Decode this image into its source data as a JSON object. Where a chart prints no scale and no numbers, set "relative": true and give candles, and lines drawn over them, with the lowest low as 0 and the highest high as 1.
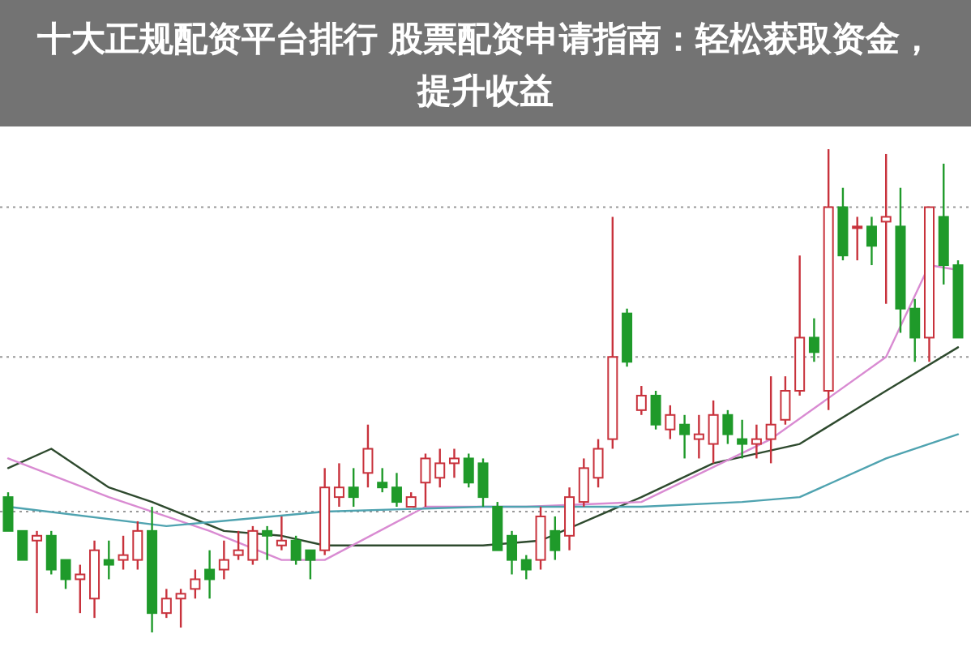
{
  "chart_data": {
    "type": "candlestick",
    "title": "十大正规配资平台排行 股票配资申请指南：轻松获取资金，提升收益",
    "relative": true,
    "grid": "y",
    "categories": [
      null,
      null,
      null,
      null,
      null,
      null,
      null,
      null,
      null,
      null,
      null,
      null,
      null,
      null,
      null,
      null,
      null,
      null,
      null,
      null,
      null,
      null,
      null,
      null,
      null,
      null,
      null,
      null,
      null,
      null,
      null,
      null,
      null,
      null,
      null,
      null,
      null,
      null,
      null,
      null,
      null,
      null,
      null,
      null,
      null,
      null,
      null,
      null,
      null,
      null,
      null,
      null,
      null,
      null,
      null,
      null,
      null,
      null,
      null,
      null,
      null,
      null,
      null,
      null,
      null,
      null,
      null
    ],
    "colors": [
      "#1f9a2a",
      "#1f9a2a",
      "#c8323c",
      "#1f9a2a",
      "#1f9a2a",
      "#c8323c",
      "#c8323c",
      "#1f9a2a",
      "#c8323c",
      "#c8323c",
      "#1f9a2a",
      "#c8323c",
      "#c8323c",
      "#c8323c",
      "#1f9a2a",
      "#c8323c",
      "#c8323c",
      "#c8323c",
      "#1f9a2a",
      "#c8323c",
      "#1f9a2a",
      "#1f9a2a",
      "#c8323c",
      "#c8323c",
      "#1f9a2a",
      "#c8323c",
      "#1f9a2a",
      "#1f9a2a",
      "#c8323c",
      "#c8323c",
      "#c8323c",
      "#c8323c",
      "#1f9a2a",
      "#1f9a2a",
      "#1f9a2a",
      "#1f9a2a",
      "#1f9a2a",
      "#c8323c",
      "#1f9a2a",
      "#c8323c",
      "#c8323c",
      "#c8323c",
      "#c8323c",
      "#1f9a2a",
      "#c8323c",
      "#1f9a2a",
      "#c8323c",
      "#1f9a2a",
      "#c8323c",
      "#c8323c",
      "#1f9a2a",
      "#1f9a2a",
      "#c8323c",
      "#c8323c",
      "#c8323c",
      "#c8323c",
      "#1f9a2a",
      "#c8323c",
      "#1f9a2a",
      "#c8323c",
      "#1f9a2a",
      "#c8323c",
      "#1f9a2a",
      "#1f9a2a",
      "#c8323c",
      "#1f9a2a",
      "#1f9a2a"
    ],
    "ohlc": [
      [
        0.28,
        0.29,
        0.21,
        0.21
      ],
      [
        0.21,
        0.21,
        0.15,
        0.15
      ],
      [
        0.19,
        0.21,
        0.04,
        0.2
      ],
      [
        0.2,
        0.21,
        0.12,
        0.13
      ],
      [
        0.15,
        0.15,
        0.09,
        0.11
      ],
      [
        0.11,
        0.14,
        0.04,
        0.12
      ],
      [
        0.07,
        0.19,
        0.03,
        0.17
      ],
      [
        0.15,
        0.19,
        0.11,
        0.14
      ],
      [
        0.15,
        0.2,
        0.13,
        0.16
      ],
      [
        0.15,
        0.23,
        0.13,
        0.21
      ],
      [
        0.21,
        0.26,
        0.0,
        0.04
      ],
      [
        0.04,
        0.09,
        0.03,
        0.07
      ],
      [
        0.07,
        0.09,
        0.01,
        0.08
      ],
      [
        0.09,
        0.13,
        0.07,
        0.11
      ],
      [
        0.13,
        0.17,
        0.07,
        0.11
      ],
      [
        0.13,
        0.19,
        0.11,
        0.15
      ],
      [
        0.16,
        0.21,
        0.15,
        0.17
      ],
      [
        0.15,
        0.22,
        0.14,
        0.21
      ],
      [
        0.21,
        0.22,
        0.15,
        0.2
      ],
      [
        0.18,
        0.24,
        0.17,
        0.19
      ],
      [
        0.19,
        0.2,
        0.14,
        0.15
      ],
      [
        0.17,
        0.17,
        0.11,
        0.15
      ],
      [
        0.17,
        0.34,
        0.16,
        0.3
      ],
      [
        0.28,
        0.35,
        0.26,
        0.3
      ],
      [
        0.3,
        0.34,
        0.26,
        0.28
      ],
      [
        0.33,
        0.43,
        0.3,
        0.38
      ],
      [
        0.31,
        0.34,
        0.29,
        0.3
      ],
      [
        0.3,
        0.33,
        0.26,
        0.27
      ],
      [
        0.26,
        0.29,
        0.26,
        0.28
      ],
      [
        0.31,
        0.37,
        0.26,
        0.36
      ],
      [
        0.32,
        0.38,
        0.3,
        0.35
      ],
      [
        0.35,
        0.38,
        0.32,
        0.36
      ],
      [
        0.36,
        0.37,
        0.3,
        0.31
      ],
      [
        0.35,
        0.36,
        0.26,
        0.28
      ],
      [
        0.26,
        0.27,
        0.17,
        0.17
      ],
      [
        0.2,
        0.21,
        0.12,
        0.15
      ],
      [
        0.15,
        0.16,
        0.11,
        0.13
      ],
      [
        0.15,
        0.26,
        0.13,
        0.24
      ],
      [
        0.21,
        0.24,
        0.15,
        0.17
      ],
      [
        0.2,
        0.3,
        0.17,
        0.28
      ],
      [
        0.27,
        0.36,
        0.26,
        0.34
      ],
      [
        0.32,
        0.4,
        0.3,
        0.38
      ],
      [
        0.4,
        0.86,
        0.38,
        0.57
      ],
      [
        0.66,
        0.67,
        0.55,
        0.56
      ],
      [
        0.46,
        0.51,
        0.45,
        0.49
      ],
      [
        0.49,
        0.5,
        0.42,
        0.43
      ],
      [
        0.42,
        0.47,
        0.4,
        0.45
      ],
      [
        0.43,
        0.45,
        0.36,
        0.41
      ],
      [
        0.4,
        0.45,
        0.36,
        0.41
      ],
      [
        0.39,
        0.48,
        0.35,
        0.45
      ],
      [
        0.45,
        0.46,
        0.39,
        0.41
      ],
      [
        0.4,
        0.44,
        0.36,
        0.39
      ],
      [
        0.39,
        0.43,
        0.36,
        0.4
      ],
      [
        0.4,
        0.53,
        0.35,
        0.43
      ],
      [
        0.44,
        0.53,
        0.43,
        0.5
      ],
      [
        0.5,
        0.78,
        0.49,
        0.61
      ],
      [
        0.61,
        0.65,
        0.56,
        0.58
      ],
      [
        0.5,
        1.0,
        0.46,
        0.88
      ],
      [
        0.88,
        0.92,
        0.77,
        0.78
      ],
      [
        0.84,
        0.86,
        0.77,
        0.84
      ],
      [
        0.84,
        0.86,
        0.76,
        0.8
      ],
      [
        0.85,
        0.99,
        0.68,
        0.86
      ],
      [
        0.84,
        0.92,
        0.62,
        0.67
      ],
      [
        0.67,
        0.69,
        0.56,
        0.61
      ],
      [
        0.61,
        0.88,
        0.56,
        0.88
      ],
      [
        0.86,
        0.97,
        0.72,
        0.76
      ],
      [
        0.76,
        0.77,
        0.61,
        0.61
      ]
    ],
    "series": [
      {
        "type": "line",
        "color": "#2e4a2e",
        "values": [
          0.34,
          null,
          null,
          0.38,
          null,
          null,
          null,
          0.3,
          null,
          null,
          0.27,
          null,
          null,
          null,
          null,
          0.21,
          null,
          null,
          null,
          0.2,
          null,
          null,
          0.18,
          null,
          null,
          null,
          null,
          null,
          null,
          null,
          null,
          null,
          null,
          0.18,
          null,
          null,
          null,
          0.19,
          null,
          null,
          null,
          null,
          null,
          null,
          0.28,
          null,
          null,
          null,
          null,
          0.35,
          null,
          null,
          null,
          null,
          null,
          0.39,
          null,
          null,
          null,
          null,
          null,
          0.5,
          null,
          null,
          null,
          null,
          0.59
        ]
      },
      {
        "type": "line",
        "color": "#d98bd2",
        "values": [
          0.36,
          null,
          null,
          null,
          null,
          null,
          null,
          0.28,
          null,
          null,
          null,
          null,
          null,
          null,
          0.21,
          null,
          null,
          null,
          null,
          0.15,
          null,
          null,
          0.15,
          null,
          null,
          null,
          null,
          null,
          null,
          0.26,
          null,
          null,
          null,
          null,
          null,
          null,
          0.26,
          null,
          null,
          null,
          null,
          null,
          null,
          null,
          0.27,
          null,
          null,
          null,
          null,
          null,
          null,
          null,
          null,
          0.4,
          null,
          null,
          null,
          null,
          null,
          null,
          null,
          0.57,
          null,
          null,
          0.76,
          null,
          0.75
        ]
      },
      {
        "type": "line",
        "color": "#4fa3b0",
        "values": [
          0.26,
          null,
          null,
          null,
          null,
          null,
          null,
          null,
          null,
          null,
          null,
          0.22,
          null,
          null,
          null,
          null,
          null,
          null,
          null,
          null,
          null,
          null,
          0.25,
          null,
          null,
          null,
          null,
          null,
          null,
          null,
          null,
          null,
          null,
          0.26,
          null,
          null,
          null,
          null,
          null,
          null,
          null,
          null,
          null,
          null,
          0.26,
          null,
          null,
          null,
          null,
          null,
          null,
          0.27,
          null,
          null,
          null,
          0.28,
          null,
          null,
          null,
          null,
          null,
          0.36,
          null,
          null,
          null,
          null,
          0.41
        ]
      }
    ]
  }
}
